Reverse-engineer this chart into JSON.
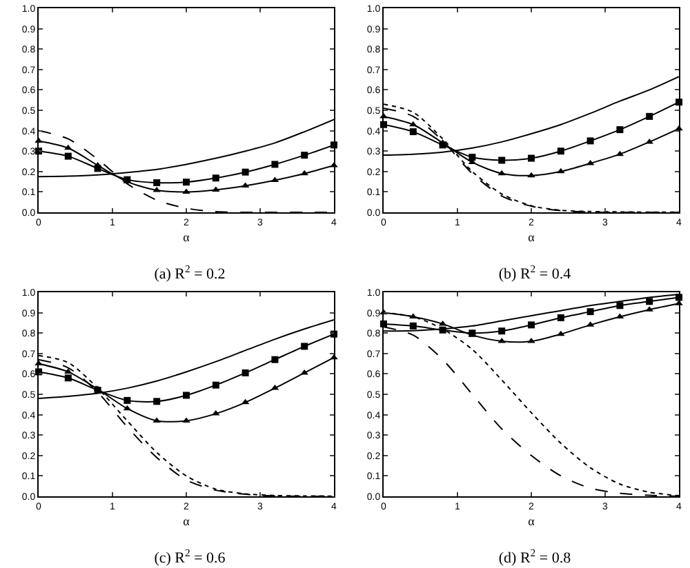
{
  "chart_data": [
    {
      "type": "line",
      "title": "(a) R$^{2}$ = 0.2",
      "xlabel": "α",
      "x": [
        0,
        0.4,
        0.8,
        1.2,
        1.6,
        2.0,
        2.4,
        2.8,
        3.2,
        3.6,
        4.0
      ],
      "xlim": [
        0,
        4
      ],
      "xticks": [
        0,
        1,
        2,
        3,
        4
      ],
      "ylim": [
        0,
        1
      ],
      "yticks": [
        {
          "value": 0,
          "label": "0.0"
        },
        {
          "value": 0.1,
          "label": "0.1"
        },
        {
          "value": 0.2,
          "label": "0.2"
        },
        {
          "value": 0.3,
          "label": "0.3"
        },
        {
          "value": 0.4,
          "label": "0.4"
        },
        {
          "value": 0.5,
          "label": "0.5"
        },
        {
          "value": 0.6,
          "label": "0.6"
        },
        {
          "value": 0.7,
          "label": "0.7"
        },
        {
          "value": 0.8,
          "label": "0.8"
        },
        {
          "value": 0.9,
          "label": "0.9"
        },
        {
          "value": 1,
          "label": "1.0"
        }
      ],
      "grid": false,
      "series": [
        {
          "color": "#000000",
          "line_style": "solid",
          "marker": "none",
          "values": [
            0.175,
            0.177,
            0.183,
            0.195,
            0.21,
            0.235,
            0.265,
            0.3,
            0.34,
            0.395,
            0.455
          ]
        },
        {
          "color": "#000000",
          "line_style": "solid",
          "marker": "square",
          "values": [
            0.3,
            0.275,
            0.215,
            0.16,
            0.145,
            0.148,
            0.168,
            0.197,
            0.235,
            0.28,
            0.33
          ]
        },
        {
          "color": "#000000",
          "line_style": "solid",
          "marker": "triangle",
          "values": [
            0.35,
            0.315,
            0.23,
            0.15,
            0.108,
            0.1,
            0.11,
            0.13,
            0.157,
            0.19,
            0.23
          ]
        },
        {
          "color": "#000000",
          "line_style": "dashed",
          "marker": "none",
          "values": [
            0.4,
            0.36,
            0.26,
            0.14,
            0.06,
            0.02,
            0.003,
            0,
            0,
            0,
            0
          ]
        }
      ]
    },
    {
      "type": "line",
      "title": "(b) R$^{2}$ = 0.4",
      "xlabel": "α",
      "x": [
        0,
        0.4,
        0.8,
        1.2,
        1.6,
        2.0,
        2.4,
        2.8,
        3.2,
        3.6,
        4.0
      ],
      "xlim": [
        0,
        4
      ],
      "xticks": [
        0,
        1,
        2,
        3,
        4
      ],
      "ylim": [
        0,
        1
      ],
      "yticks": [
        {
          "value": 0,
          "label": "0.0"
        },
        {
          "value": 0.1,
          "label": "0.1"
        },
        {
          "value": 0.2,
          "label": "0.2"
        },
        {
          "value": 0.3,
          "label": "0.3"
        },
        {
          "value": 0.4,
          "label": "0.4"
        },
        {
          "value": 0.5,
          "label": "0.5"
        },
        {
          "value": 0.6,
          "label": "0.6"
        },
        {
          "value": 0.7,
          "label": "0.7"
        },
        {
          "value": 0.8,
          "label": "0.8"
        },
        {
          "value": 0.9,
          "label": "0.9"
        },
        {
          "value": 1,
          "label": "1.0"
        }
      ],
      "grid": false,
      "series": [
        {
          "color": "#000000",
          "line_style": "solid",
          "marker": "none",
          "values": [
            0.28,
            0.285,
            0.295,
            0.315,
            0.345,
            0.385,
            0.43,
            0.485,
            0.545,
            0.6,
            0.665
          ]
        },
        {
          "color": "#000000",
          "line_style": "solid",
          "marker": "square",
          "values": [
            0.43,
            0.395,
            0.33,
            0.27,
            0.255,
            0.265,
            0.3,
            0.35,
            0.405,
            0.47,
            0.54
          ]
        },
        {
          "color": "#000000",
          "line_style": "solid",
          "marker": "triangle",
          "values": [
            0.47,
            0.43,
            0.34,
            0.245,
            0.19,
            0.18,
            0.2,
            0.24,
            0.285,
            0.345,
            0.41
          ]
        },
        {
          "color": "#000000",
          "line_style": "dashed",
          "marker": "none",
          "values": [
            0.51,
            0.47,
            0.35,
            0.19,
            0.08,
            0.03,
            0.008,
            0.001,
            0,
            0,
            0
          ]
        },
        {
          "color": "#000000",
          "line_style": "dotted",
          "marker": "none",
          "values": [
            0.53,
            0.49,
            0.36,
            0.2,
            0.09,
            0.032,
            0.01,
            0.004,
            0.002,
            0.001,
            0.001
          ]
        }
      ]
    },
    {
      "type": "line",
      "title": "(c) R$^{2}$ = 0.6",
      "xlabel": "α",
      "x": [
        0,
        0.4,
        0.8,
        1.2,
        1.6,
        2.0,
        2.4,
        2.8,
        3.2,
        3.6,
        4.0
      ],
      "xlim": [
        0,
        4
      ],
      "xticks": [
        0,
        1,
        2,
        3,
        4
      ],
      "ylim": [
        0,
        1
      ],
      "yticks": [
        {
          "value": 0,
          "label": "0.0"
        },
        {
          "value": 0.1,
          "label": "0.1"
        },
        {
          "value": 0.2,
          "label": "0.2"
        },
        {
          "value": 0.3,
          "label": "0.3"
        },
        {
          "value": 0.4,
          "label": "0.4"
        },
        {
          "value": 0.5,
          "label": "0.5"
        },
        {
          "value": 0.6,
          "label": "0.6"
        },
        {
          "value": 0.7,
          "label": "0.7"
        },
        {
          "value": 0.8,
          "label": "0.8"
        },
        {
          "value": 0.9,
          "label": "0.9"
        },
        {
          "value": 1,
          "label": "1.0"
        }
      ],
      "grid": false,
      "series": [
        {
          "color": "#000000",
          "line_style": "solid",
          "marker": "none",
          "values": [
            0.48,
            0.49,
            0.505,
            0.53,
            0.565,
            0.61,
            0.66,
            0.715,
            0.77,
            0.82,
            0.865
          ]
        },
        {
          "color": "#000000",
          "line_style": "solid",
          "marker": "square",
          "values": [
            0.61,
            0.58,
            0.52,
            0.47,
            0.465,
            0.495,
            0.545,
            0.605,
            0.67,
            0.735,
            0.795
          ]
        },
        {
          "color": "#000000",
          "line_style": "solid",
          "marker": "triangle",
          "values": [
            0.65,
            0.61,
            0.525,
            0.43,
            0.37,
            0.37,
            0.405,
            0.46,
            0.53,
            0.605,
            0.68
          ]
        },
        {
          "color": "#000000",
          "line_style": "dashed",
          "marker": "none",
          "values": [
            0.67,
            0.63,
            0.51,
            0.34,
            0.19,
            0.08,
            0.03,
            0.01,
            0.002,
            0,
            0
          ]
        },
        {
          "color": "#000000",
          "line_style": "dotted",
          "marker": "none",
          "values": [
            0.69,
            0.655,
            0.53,
            0.37,
            0.215,
            0.1,
            0.035,
            0.012,
            0.004,
            0.002,
            0.001
          ]
        }
      ]
    },
    {
      "type": "line",
      "title": "(d) R$^{2}$ = 0.8",
      "xlabel": "α",
      "x": [
        0,
        0.4,
        0.8,
        1.2,
        1.6,
        2.0,
        2.4,
        2.8,
        3.2,
        3.6,
        4.0
      ],
      "xlim": [
        0,
        4
      ],
      "xticks": [
        0,
        1,
        2,
        3,
        4
      ],
      "ylim": [
        0,
        1
      ],
      "yticks": [
        {
          "value": 0,
          "label": "0.0"
        },
        {
          "value": 0.1,
          "label": "0.1"
        },
        {
          "value": 0.2,
          "label": "0.2"
        },
        {
          "value": 0.3,
          "label": "0.3"
        },
        {
          "value": 0.4,
          "label": "0.4"
        },
        {
          "value": 0.5,
          "label": "0.5"
        },
        {
          "value": 0.6,
          "label": "0.6"
        },
        {
          "value": 0.7,
          "label": "0.7"
        },
        {
          "value": 0.8,
          "label": "0.8"
        },
        {
          "value": 0.9,
          "label": "0.9"
        },
        {
          "value": 1,
          "label": "1.0"
        }
      ],
      "grid": false,
      "series": [
        {
          "color": "#000000",
          "line_style": "solid",
          "marker": "none",
          "values": [
            0.81,
            0.812,
            0.82,
            0.835,
            0.86,
            0.885,
            0.91,
            0.935,
            0.955,
            0.975,
            0.99
          ]
        },
        {
          "color": "#000000",
          "line_style": "solid",
          "marker": "square",
          "values": [
            0.845,
            0.835,
            0.815,
            0.8,
            0.81,
            0.84,
            0.875,
            0.905,
            0.935,
            0.955,
            0.975
          ]
        },
        {
          "color": "#000000",
          "line_style": "solid",
          "marker": "triangle",
          "values": [
            0.9,
            0.88,
            0.845,
            0.79,
            0.76,
            0.76,
            0.795,
            0.84,
            0.88,
            0.915,
            0.945
          ]
        },
        {
          "color": "#000000",
          "line_style": "dotted",
          "marker": "none",
          "values": [
            0.9,
            0.88,
            0.82,
            0.72,
            0.57,
            0.41,
            0.26,
            0.14,
            0.06,
            0.02,
            0.003
          ]
        },
        {
          "color": "#000000",
          "line_style": "dashed",
          "marker": "none",
          "values": [
            0.83,
            0.79,
            0.67,
            0.5,
            0.33,
            0.2,
            0.1,
            0.04,
            0.015,
            0.005,
            0
          ]
        }
      ]
    }
  ]
}
